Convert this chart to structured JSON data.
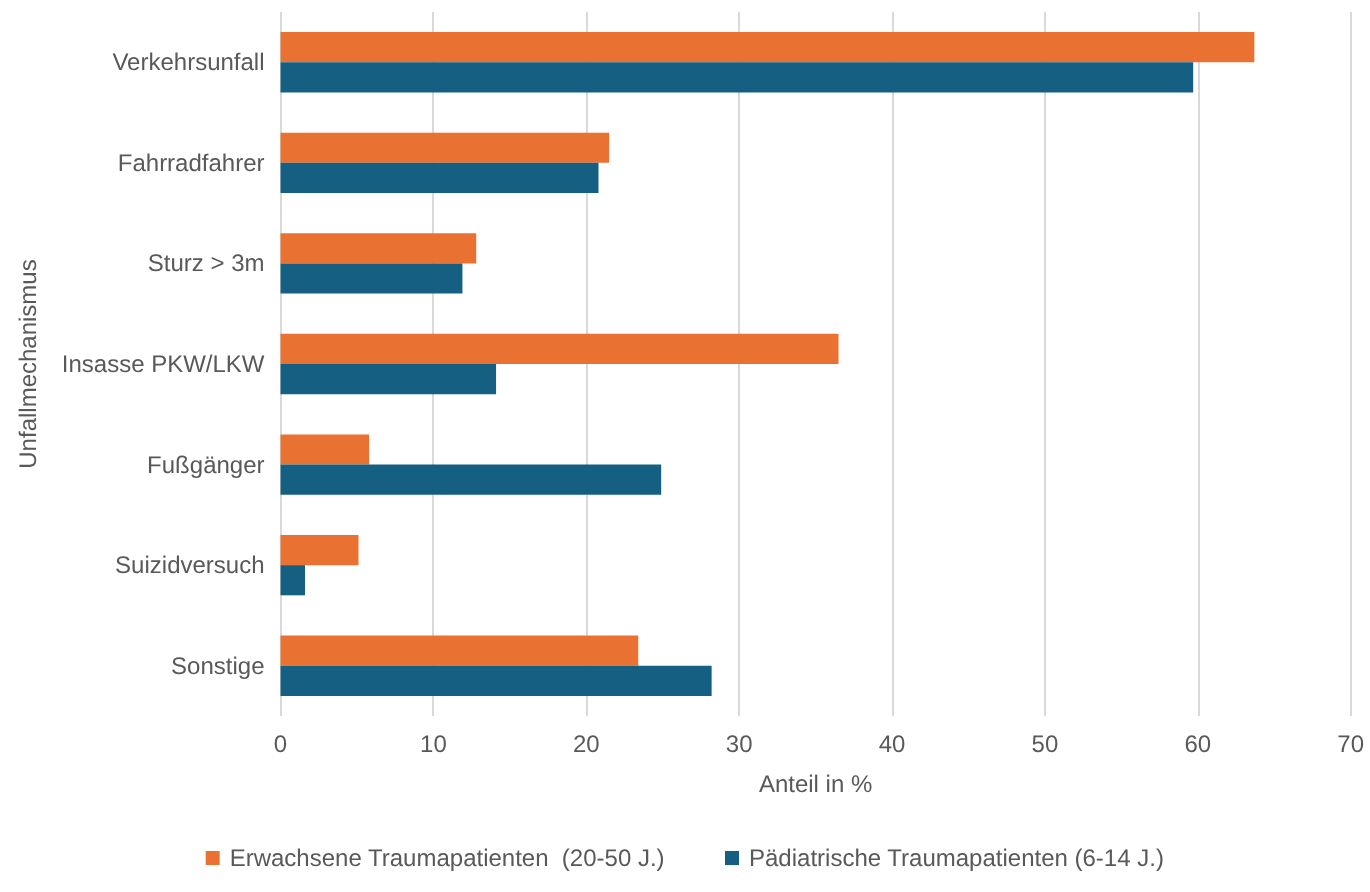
{
  "chart_data": {
    "type": "bar",
    "orientation": "horizontal",
    "xlabel": "Anteil in %",
    "ylabel": "Unfallmechanismus",
    "categories": [
      "Verkehrsunfall",
      "Fahrradfahrer",
      "Sturz > 3m",
      "Insasse PKW/LKW",
      "Fußgänger",
      "Suizidversuch",
      "Sonstige"
    ],
    "series": [
      {
        "name": "Erwachsene Traumapatienten  (20-50 J.)",
        "color": "#e97132",
        "values": [
          63.7,
          21.5,
          12.8,
          36.5,
          5.8,
          5.1,
          23.4
        ]
      },
      {
        "name": "Pädiatrische Traumapatienten (6-14 J.)",
        "color": "#156082",
        "values": [
          59.7,
          20.8,
          11.9,
          14.1,
          24.9,
          1.6,
          28.2
        ]
      }
    ],
    "xlim": [
      0,
      70
    ],
    "xticks": [
      0,
      10,
      20,
      30,
      40,
      50,
      60,
      70
    ],
    "grid": "x",
    "legend": "bottom"
  }
}
